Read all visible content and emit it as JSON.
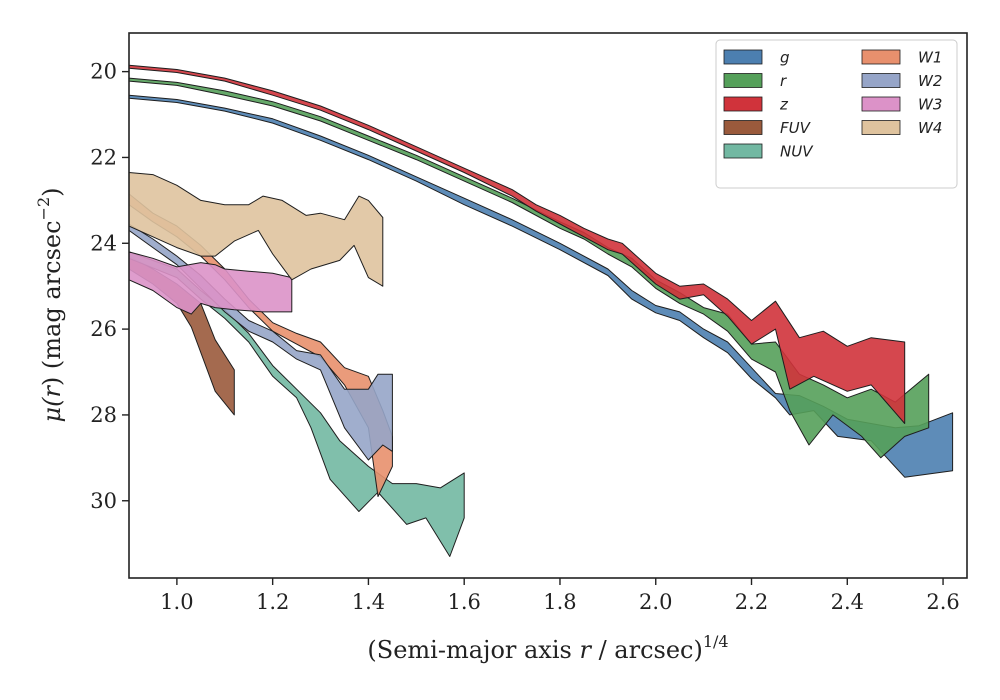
{
  "chart_data": {
    "type": "area",
    "title": "",
    "xlabel": "(Semi-major axis r / arcsec)^1/4",
    "xlabel_parts": [
      "(Semi-major axis ",
      "r",
      " / arcsec)",
      "1/4"
    ],
    "ylabel": "μ(r) (mag arcsec^−2)",
    "ylabel_parts": [
      "μ(",
      "r",
      ") (mag arcsec",
      "−2",
      ")"
    ],
    "xlim": [
      0.9,
      2.65
    ],
    "ylim": [
      31.8,
      19.1
    ],
    "y_inverted": true,
    "xticks": [
      1.0,
      1.2,
      1.4,
      1.6,
      1.8,
      2.0,
      2.2,
      2.4,
      2.6
    ],
    "xtick_labels": [
      "1.0",
      "1.2",
      "1.4",
      "1.6",
      "1.8",
      "2.0",
      "2.2",
      "2.4",
      "2.6"
    ],
    "yticks": [
      20,
      22,
      24,
      26,
      28,
      30
    ],
    "ytick_labels": [
      "20",
      "22",
      "24",
      "26",
      "28",
      "30"
    ],
    "grid": false,
    "legend_position": "top-right",
    "legend_columns": 2,
    "series": [
      {
        "name": "g",
        "color": "#4c7fb0",
        "upper": [
          [
            0.9,
            20.55
          ],
          [
            1.0,
            20.65
          ],
          [
            1.1,
            20.85
          ],
          [
            1.2,
            21.1
          ],
          [
            1.3,
            21.5
          ],
          [
            1.4,
            21.95
          ],
          [
            1.5,
            22.45
          ],
          [
            1.6,
            22.95
          ],
          [
            1.7,
            23.45
          ],
          [
            1.8,
            24.0
          ],
          [
            1.9,
            24.6
          ],
          [
            1.95,
            25.1
          ],
          [
            2.0,
            25.45
          ],
          [
            2.05,
            25.6
          ],
          [
            2.1,
            26.0
          ],
          [
            2.15,
            26.3
          ],
          [
            2.2,
            26.9
          ],
          [
            2.25,
            27.5
          ],
          [
            2.3,
            27.55
          ],
          [
            2.35,
            27.8
          ],
          [
            2.4,
            28.1
          ],
          [
            2.5,
            28.3
          ],
          [
            2.55,
            28.25
          ],
          [
            2.62,
            27.95
          ]
        ],
        "lower": [
          [
            0.9,
            20.62
          ],
          [
            1.0,
            20.72
          ],
          [
            1.1,
            20.92
          ],
          [
            1.2,
            21.2
          ],
          [
            1.3,
            21.6
          ],
          [
            1.4,
            22.05
          ],
          [
            1.5,
            22.55
          ],
          [
            1.6,
            23.1
          ],
          [
            1.7,
            23.6
          ],
          [
            1.8,
            24.15
          ],
          [
            1.9,
            24.75
          ],
          [
            1.95,
            25.3
          ],
          [
            2.0,
            25.62
          ],
          [
            2.05,
            25.8
          ],
          [
            2.1,
            26.2
          ],
          [
            2.15,
            26.55
          ],
          [
            2.2,
            27.15
          ],
          [
            2.25,
            27.6
          ],
          [
            2.28,
            28.0
          ],
          [
            2.33,
            27.9
          ],
          [
            2.38,
            28.5
          ],
          [
            2.45,
            28.6
          ],
          [
            2.52,
            29.45
          ],
          [
            2.62,
            29.3
          ]
        ]
      },
      {
        "name": "r",
        "color": "#55a05a",
        "upper": [
          [
            0.9,
            20.15
          ],
          [
            1.0,
            20.25
          ],
          [
            1.1,
            20.45
          ],
          [
            1.2,
            20.7
          ],
          [
            1.3,
            21.05
          ],
          [
            1.4,
            21.5
          ],
          [
            1.5,
            21.95
          ],
          [
            1.6,
            22.45
          ],
          [
            1.7,
            22.95
          ],
          [
            1.8,
            23.5
          ],
          [
            1.85,
            23.75
          ],
          [
            1.9,
            24.1
          ],
          [
            1.95,
            24.35
          ],
          [
            2.0,
            24.85
          ],
          [
            2.05,
            25.15
          ],
          [
            2.1,
            25.5
          ],
          [
            2.15,
            25.65
          ],
          [
            2.2,
            26.35
          ],
          [
            2.25,
            26.3
          ],
          [
            2.3,
            27.05
          ],
          [
            2.35,
            27.3
          ],
          [
            2.4,
            27.6
          ],
          [
            2.45,
            27.4
          ],
          [
            2.5,
            27.7
          ],
          [
            2.57,
            27.05
          ]
        ],
        "lower": [
          [
            0.9,
            20.22
          ],
          [
            1.0,
            20.32
          ],
          [
            1.1,
            20.55
          ],
          [
            1.2,
            20.8
          ],
          [
            1.3,
            21.15
          ],
          [
            1.4,
            21.6
          ],
          [
            1.5,
            22.05
          ],
          [
            1.6,
            22.55
          ],
          [
            1.7,
            23.05
          ],
          [
            1.8,
            23.65
          ],
          [
            1.85,
            23.9
          ],
          [
            1.9,
            24.25
          ],
          [
            1.95,
            24.55
          ],
          [
            2.0,
            25.05
          ],
          [
            2.05,
            25.4
          ],
          [
            2.1,
            25.65
          ],
          [
            2.15,
            26.05
          ],
          [
            2.2,
            26.7
          ],
          [
            2.25,
            27.0
          ],
          [
            2.28,
            27.9
          ],
          [
            2.32,
            28.7
          ],
          [
            2.37,
            28.0
          ],
          [
            2.43,
            28.5
          ],
          [
            2.47,
            29.0
          ],
          [
            2.52,
            28.5
          ],
          [
            2.57,
            28.3
          ]
        ]
      },
      {
        "name": "z",
        "color": "#d0333b",
        "upper": [
          [
            0.9,
            19.85
          ],
          [
            1.0,
            19.95
          ],
          [
            1.1,
            20.15
          ],
          [
            1.2,
            20.45
          ],
          [
            1.3,
            20.8
          ],
          [
            1.4,
            21.25
          ],
          [
            1.5,
            21.75
          ],
          [
            1.6,
            22.25
          ],
          [
            1.7,
            22.75
          ],
          [
            1.75,
            23.1
          ],
          [
            1.8,
            23.35
          ],
          [
            1.85,
            23.65
          ],
          [
            1.9,
            23.9
          ],
          [
            1.93,
            24.0
          ],
          [
            2.0,
            24.7
          ],
          [
            2.05,
            25.0
          ],
          [
            2.1,
            24.95
          ],
          [
            2.15,
            25.3
          ],
          [
            2.2,
            25.8
          ],
          [
            2.25,
            25.35
          ],
          [
            2.3,
            26.2
          ],
          [
            2.35,
            26.05
          ],
          [
            2.4,
            26.4
          ],
          [
            2.45,
            26.2
          ],
          [
            2.52,
            26.3
          ]
        ],
        "lower": [
          [
            0.9,
            19.92
          ],
          [
            1.0,
            20.02
          ],
          [
            1.1,
            20.22
          ],
          [
            1.2,
            20.55
          ],
          [
            1.3,
            20.9
          ],
          [
            1.4,
            21.35
          ],
          [
            1.5,
            21.85
          ],
          [
            1.6,
            22.35
          ],
          [
            1.7,
            22.9
          ],
          [
            1.75,
            23.25
          ],
          [
            1.8,
            23.55
          ],
          [
            1.85,
            23.85
          ],
          [
            1.9,
            24.15
          ],
          [
            1.93,
            24.25
          ],
          [
            2.0,
            24.95
          ],
          [
            2.05,
            25.3
          ],
          [
            2.1,
            25.2
          ],
          [
            2.15,
            25.7
          ],
          [
            2.2,
            26.35
          ],
          [
            2.25,
            26.0
          ],
          [
            2.28,
            27.4
          ],
          [
            2.33,
            27.1
          ],
          [
            2.4,
            27.45
          ],
          [
            2.45,
            27.3
          ],
          [
            2.52,
            28.2
          ]
        ]
      },
      {
        "name": "FUV",
        "color": "#9a5a3c",
        "upper": [
          [
            0.9,
            24.3
          ],
          [
            0.95,
            24.6
          ],
          [
            1.0,
            24.95
          ],
          [
            1.05,
            25.4
          ],
          [
            1.08,
            26.25
          ],
          [
            1.12,
            26.95
          ]
        ],
        "lower": [
          [
            0.9,
            24.6
          ],
          [
            0.95,
            24.95
          ],
          [
            1.0,
            25.4
          ],
          [
            1.03,
            25.95
          ],
          [
            1.08,
            27.45
          ],
          [
            1.12,
            28.0
          ]
        ]
      },
      {
        "name": "NUV",
        "color": "#72b8a2",
        "upper": [
          [
            0.9,
            24.2
          ],
          [
            1.0,
            24.6
          ],
          [
            1.05,
            25.1
          ],
          [
            1.1,
            25.55
          ],
          [
            1.15,
            26.1
          ],
          [
            1.2,
            26.85
          ],
          [
            1.25,
            27.4
          ],
          [
            1.3,
            27.95
          ],
          [
            1.34,
            28.6
          ],
          [
            1.4,
            29.2
          ],
          [
            1.45,
            29.6
          ],
          [
            1.5,
            29.6
          ],
          [
            1.55,
            29.7
          ],
          [
            1.6,
            29.35
          ]
        ],
        "lower": [
          [
            0.9,
            24.35
          ],
          [
            1.0,
            24.8
          ],
          [
            1.05,
            25.3
          ],
          [
            1.1,
            25.75
          ],
          [
            1.15,
            26.3
          ],
          [
            1.2,
            27.1
          ],
          [
            1.25,
            27.6
          ],
          [
            1.28,
            28.3
          ],
          [
            1.32,
            29.5
          ],
          [
            1.38,
            30.25
          ],
          [
            1.42,
            29.8
          ],
          [
            1.48,
            30.55
          ],
          [
            1.52,
            30.4
          ],
          [
            1.57,
            31.3
          ],
          [
            1.6,
            30.4
          ]
        ]
      },
      {
        "name": "W1",
        "color": "#e8906d",
        "upper": [
          [
            0.9,
            22.85
          ],
          [
            0.95,
            23.3
          ],
          [
            1.0,
            23.6
          ],
          [
            1.05,
            24.05
          ],
          [
            1.1,
            24.6
          ],
          [
            1.15,
            25.3
          ],
          [
            1.2,
            25.85
          ],
          [
            1.25,
            26.1
          ],
          [
            1.3,
            26.3
          ],
          [
            1.35,
            26.9
          ],
          [
            1.4,
            27.1
          ],
          [
            1.43,
            27.9
          ],
          [
            1.45,
            28.5
          ]
        ],
        "lower": [
          [
            0.9,
            23.1
          ],
          [
            0.95,
            23.5
          ],
          [
            1.0,
            23.85
          ],
          [
            1.05,
            24.3
          ],
          [
            1.1,
            24.85
          ],
          [
            1.15,
            25.5
          ],
          [
            1.2,
            26.05
          ],
          [
            1.25,
            26.35
          ],
          [
            1.3,
            26.65
          ],
          [
            1.35,
            27.3
          ],
          [
            1.4,
            28.3
          ],
          [
            1.42,
            29.9
          ],
          [
            1.45,
            29.2
          ]
        ]
      },
      {
        "name": "W2",
        "color": "#96a5c8",
        "upper": [
          [
            0.9,
            23.55
          ],
          [
            0.95,
            23.9
          ],
          [
            1.0,
            24.3
          ],
          [
            1.05,
            24.75
          ],
          [
            1.1,
            25.3
          ],
          [
            1.15,
            25.8
          ],
          [
            1.2,
            26.05
          ],
          [
            1.25,
            26.5
          ],
          [
            1.3,
            26.6
          ],
          [
            1.35,
            27.4
          ],
          [
            1.4,
            27.4
          ],
          [
            1.42,
            27.05
          ],
          [
            1.45,
            27.05
          ]
        ],
        "lower": [
          [
            0.9,
            23.7
          ],
          [
            0.95,
            24.1
          ],
          [
            1.0,
            24.5
          ],
          [
            1.05,
            25.05
          ],
          [
            1.1,
            25.6
          ],
          [
            1.15,
            26.05
          ],
          [
            1.2,
            26.3
          ],
          [
            1.25,
            26.7
          ],
          [
            1.3,
            26.95
          ],
          [
            1.35,
            28.3
          ],
          [
            1.4,
            29.05
          ],
          [
            1.43,
            28.7
          ],
          [
            1.45,
            28.85
          ]
        ]
      },
      {
        "name": "W3",
        "color": "#dc92c8",
        "upper": [
          [
            0.9,
            24.2
          ],
          [
            0.95,
            24.35
          ],
          [
            1.0,
            24.55
          ],
          [
            1.05,
            24.45
          ],
          [
            1.08,
            24.5
          ],
          [
            1.1,
            24.6
          ],
          [
            1.15,
            24.65
          ],
          [
            1.2,
            24.7
          ],
          [
            1.24,
            24.8
          ]
        ],
        "lower": [
          [
            0.9,
            24.85
          ],
          [
            0.95,
            25.1
          ],
          [
            1.0,
            25.5
          ],
          [
            1.03,
            25.65
          ],
          [
            1.05,
            25.4
          ],
          [
            1.08,
            25.5
          ],
          [
            1.12,
            25.55
          ],
          [
            1.18,
            25.6
          ],
          [
            1.24,
            25.6
          ]
        ]
      },
      {
        "name": "W4",
        "color": "#dfc39e",
        "upper": [
          [
            0.9,
            22.35
          ],
          [
            0.95,
            22.4
          ],
          [
            1.0,
            22.65
          ],
          [
            1.05,
            23.0
          ],
          [
            1.1,
            23.1
          ],
          [
            1.15,
            23.1
          ],
          [
            1.18,
            22.9
          ],
          [
            1.22,
            23.0
          ],
          [
            1.27,
            23.35
          ],
          [
            1.3,
            23.3
          ],
          [
            1.35,
            23.45
          ],
          [
            1.38,
            22.9
          ],
          [
            1.4,
            23.0
          ],
          [
            1.43,
            23.4
          ]
        ],
        "lower": [
          [
            0.9,
            23.6
          ],
          [
            0.95,
            23.85
          ],
          [
            1.0,
            24.1
          ],
          [
            1.05,
            24.3
          ],
          [
            1.08,
            24.3
          ],
          [
            1.12,
            23.95
          ],
          [
            1.17,
            23.7
          ],
          [
            1.2,
            24.25
          ],
          [
            1.24,
            24.85
          ],
          [
            1.28,
            24.6
          ],
          [
            1.34,
            24.4
          ],
          [
            1.37,
            24.05
          ],
          [
            1.4,
            24.8
          ],
          [
            1.43,
            25.0
          ]
        ]
      }
    ]
  }
}
